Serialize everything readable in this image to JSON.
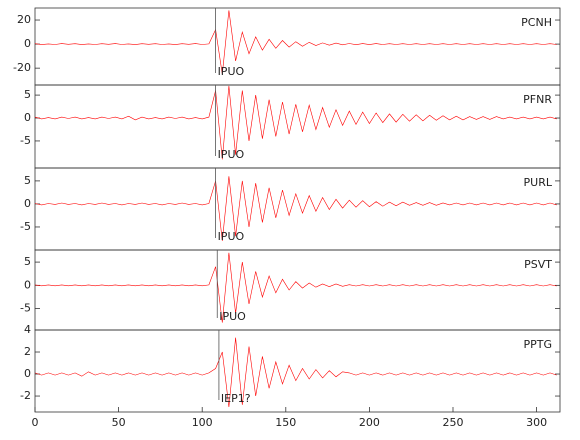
{
  "chart_data": [
    {
      "type": "line",
      "station": "PCNH",
      "pick": {
        "label": "IPUO",
        "x": 108
      },
      "color": "#ff0000",
      "x": [
        0,
        4,
        8,
        12,
        16,
        20,
        24,
        28,
        32,
        36,
        40,
        44,
        48,
        52,
        56,
        60,
        64,
        68,
        72,
        76,
        80,
        84,
        88,
        92,
        96,
        100,
        104,
        108,
        112,
        116,
        120,
        124,
        128,
        132,
        136,
        140,
        144,
        148,
        152,
        156,
        160,
        164,
        168,
        172,
        176,
        180,
        184,
        188,
        192,
        196,
        200,
        204,
        208,
        212,
        216,
        220,
        224,
        228,
        232,
        236,
        240,
        244,
        248,
        252,
        256,
        260,
        264,
        268,
        272,
        276,
        280,
        284,
        288,
        292,
        296,
        300,
        304,
        308,
        312
      ],
      "values": [
        0.3,
        -0.4,
        0.2,
        -0.3,
        0.4,
        -0.2,
        0.3,
        -0.4,
        0.2,
        -0.3,
        0.3,
        -0.2,
        0.4,
        -0.3,
        0.2,
        -0.4,
        0.3,
        -0.2,
        0.3,
        -0.3,
        0.2,
        -0.4,
        0.3,
        -0.2,
        0.4,
        -0.3,
        0.2,
        12,
        -25,
        28,
        -14,
        10,
        -8,
        6,
        -5,
        4,
        -3.5,
        3,
        -2.5,
        2,
        -1.8,
        1.5,
        -1.2,
        1,
        -0.9,
        0.8,
        -0.6,
        0.5,
        -0.5,
        0.4,
        -0.4,
        0.4,
        -0.3,
        0.3,
        -0.3,
        0.3,
        -0.3,
        0.3,
        -0.3,
        0.3,
        -0.3,
        0.3,
        -0.3,
        0.3,
        -0.3,
        0.3,
        -0.3,
        0.3,
        -0.3,
        0.3,
        -0.3,
        0.3,
        -0.3,
        0.3,
        -0.3,
        0.3,
        -0.3,
        0.3,
        -0.3
      ],
      "xlim": [
        0,
        314
      ],
      "ylim": [
        -34,
        30
      ],
      "yticks": [
        20,
        0,
        -20
      ]
    },
    {
      "type": "line",
      "station": "PFNR",
      "pick": {
        "label": "IPUO",
        "x": 108
      },
      "color": "#ff0000",
      "x": [
        0,
        4,
        8,
        12,
        16,
        20,
        24,
        28,
        32,
        36,
        40,
        44,
        48,
        52,
        56,
        60,
        64,
        68,
        72,
        76,
        80,
        84,
        88,
        92,
        96,
        100,
        104,
        108,
        112,
        116,
        120,
        124,
        128,
        132,
        136,
        140,
        144,
        148,
        152,
        156,
        160,
        164,
        168,
        172,
        176,
        180,
        184,
        188,
        192,
        196,
        200,
        204,
        208,
        212,
        216,
        220,
        224,
        228,
        232,
        236,
        240,
        244,
        248,
        252,
        256,
        260,
        264,
        268,
        272,
        276,
        280,
        284,
        288,
        292,
        296,
        300,
        304,
        308,
        312
      ],
      "values": [
        0.2,
        -0.2,
        0.1,
        -0.2,
        0.2,
        -0.1,
        0.2,
        -0.2,
        0.1,
        -0.2,
        0.2,
        -0.1,
        0.2,
        -0.2,
        0.4,
        -0.4,
        0.2,
        -0.2,
        0.1,
        -0.2,
        0.2,
        -0.1,
        0.2,
        -0.2,
        0.1,
        -0.2,
        0.2,
        6,
        -9,
        7,
        -8,
        6,
        -5,
        5,
        -4.5,
        4,
        -4,
        3.5,
        -3.5,
        3,
        -3,
        2.8,
        -2.5,
        2.3,
        -2,
        1.8,
        -1.6,
        1.5,
        -1.4,
        1.3,
        -1.2,
        1.1,
        -1,
        0.9,
        -0.9,
        0.8,
        -0.7,
        0.7,
        -0.6,
        0.6,
        -0.5,
        0.5,
        -0.4,
        0.4,
        -0.4,
        0.3,
        -0.3,
        0.3,
        -0.3,
        0.3,
        -0.2,
        0.2,
        -0.2,
        0.2,
        -0.2,
        0.2,
        -0.2,
        0.2,
        -0.2
      ],
      "xlim": [
        0,
        314
      ],
      "ylim": [
        -10.9,
        7.2
      ],
      "yticks": [
        5,
        0,
        -5
      ]
    },
    {
      "type": "line",
      "station": "PURL",
      "pick": {
        "label": "IPUO",
        "x": 108
      },
      "color": "#ff0000",
      "x": [
        0,
        4,
        8,
        12,
        16,
        20,
        24,
        28,
        32,
        36,
        40,
        44,
        48,
        52,
        56,
        60,
        64,
        68,
        72,
        76,
        80,
        84,
        88,
        92,
        96,
        100,
        104,
        108,
        112,
        116,
        120,
        124,
        128,
        132,
        136,
        140,
        144,
        148,
        152,
        156,
        160,
        164,
        168,
        172,
        176,
        180,
        184,
        188,
        192,
        196,
        200,
        204,
        208,
        212,
        216,
        220,
        224,
        228,
        232,
        236,
        240,
        244,
        248,
        252,
        256,
        260,
        264,
        268,
        272,
        276,
        280,
        284,
        288,
        292,
        296,
        300,
        304,
        308,
        312
      ],
      "values": [
        0.1,
        -0.2,
        0.1,
        -0.1,
        0.2,
        -0.1,
        0.1,
        -0.2,
        0.1,
        -0.1,
        0.2,
        -0.1,
        0.1,
        -0.2,
        0.1,
        -0.1,
        0.2,
        -0.1,
        0.1,
        -0.2,
        0.1,
        -0.1,
        0.2,
        -0.1,
        0.1,
        -0.2,
        0.1,
        5,
        -8,
        6,
        -7,
        5,
        -5,
        4.5,
        -4,
        3.5,
        -3,
        3,
        -2.5,
        2.2,
        -2,
        1.8,
        -1.6,
        1.4,
        -1.2,
        1,
        -0.9,
        0.8,
        -0.7,
        0.7,
        -0.6,
        0.5,
        -0.5,
        0.4,
        -0.4,
        0.4,
        -0.3,
        0.3,
        -0.3,
        0.3,
        -0.3,
        0.2,
        -0.2,
        0.2,
        -0.2,
        0.2,
        -0.2,
        0.2,
        -0.2,
        0.2,
        -0.2,
        0.2,
        -0.2,
        0.2,
        -0.2,
        0.2,
        -0.2,
        0.2,
        -0.2
      ],
      "xlim": [
        0,
        314
      ],
      "ylim": [
        -10,
        7.8
      ],
      "yticks": [
        5,
        0,
        -5
      ]
    },
    {
      "type": "line",
      "station": "PSVT",
      "pick": {
        "label": "IPUO",
        "x": 109
      },
      "color": "#ff0000",
      "x": [
        0,
        4,
        8,
        12,
        16,
        20,
        24,
        28,
        32,
        36,
        40,
        44,
        48,
        52,
        56,
        60,
        64,
        68,
        72,
        76,
        80,
        84,
        88,
        92,
        96,
        100,
        104,
        108,
        112,
        116,
        120,
        124,
        128,
        132,
        136,
        140,
        144,
        148,
        152,
        156,
        160,
        164,
        168,
        172,
        176,
        180,
        184,
        188,
        192,
        196,
        200,
        204,
        208,
        212,
        216,
        220,
        224,
        228,
        232,
        236,
        240,
        244,
        248,
        252,
        256,
        260,
        264,
        268,
        272,
        276,
        280,
        284,
        288,
        292,
        296,
        300,
        304,
        308,
        312
      ],
      "values": [
        0.1,
        -0.1,
        0.1,
        -0.1,
        0.1,
        -0.1,
        0.1,
        -0.1,
        0.1,
        -0.1,
        0.1,
        -0.1,
        0.1,
        -0.1,
        0.1,
        -0.1,
        0.1,
        -0.1,
        0.1,
        -0.1,
        0.1,
        -0.1,
        0.1,
        -0.1,
        0.1,
        -0.1,
        0.1,
        4,
        -8,
        7,
        -6,
        5,
        -4,
        3,
        -2.5,
        2,
        -1.6,
        1.3,
        -1,
        0.8,
        -0.6,
        0.5,
        -0.4,
        0.3,
        -0.3,
        0.3,
        -0.2,
        0.15,
        -0.15,
        0.15,
        -0.15,
        0.15,
        -0.15,
        0.15,
        -0.15,
        0.15,
        -0.15,
        0.15,
        -0.15,
        0.15,
        -0.15,
        0.15,
        -0.15,
        0.15,
        -0.15,
        0.15,
        -0.15,
        0.15,
        -0.15,
        0.15,
        -0.15,
        0.15,
        -0.15,
        0.15,
        -0.15,
        0.15,
        -0.15,
        0.15,
        -0.15
      ],
      "xlim": [
        0,
        314
      ],
      "ylim": [
        -9.6,
        7.6
      ],
      "yticks": [
        5,
        0,
        -5
      ]
    },
    {
      "type": "line",
      "station": "PPTG",
      "pick": {
        "label": "IEP1?",
        "x": 110
      },
      "color": "#ff0000",
      "x": [
        0,
        4,
        8,
        12,
        16,
        20,
        24,
        28,
        32,
        36,
        40,
        44,
        48,
        52,
        56,
        60,
        64,
        68,
        72,
        76,
        80,
        84,
        88,
        92,
        96,
        100,
        104,
        108,
        112,
        116,
        120,
        124,
        128,
        132,
        136,
        140,
        144,
        148,
        152,
        156,
        160,
        164,
        168,
        172,
        176,
        180,
        184,
        188,
        192,
        196,
        200,
        204,
        208,
        212,
        216,
        220,
        224,
        228,
        232,
        236,
        240,
        244,
        248,
        252,
        256,
        260,
        264,
        268,
        272,
        276,
        280,
        284,
        288,
        292,
        296,
        300,
        304,
        308,
        312
      ],
      "values": [
        0.1,
        -0.1,
        0.1,
        -0.1,
        0.1,
        -0.1,
        0.1,
        -0.2,
        0.2,
        -0.1,
        0.1,
        -0.1,
        0.1,
        -0.1,
        0.1,
        -0.1,
        0.1,
        -0.1,
        0.1,
        -0.1,
        0.1,
        -0.1,
        0.1,
        -0.1,
        0.1,
        -0.1,
        0.1,
        0.5,
        2,
        -3,
        3.3,
        -2.8,
        2.5,
        -2,
        1.6,
        -1.3,
        1.1,
        -0.9,
        0.8,
        -0.6,
        0.5,
        -0.45,
        0.4,
        -0.35,
        0.3,
        -0.25,
        0.2,
        0.1,
        -0.1,
        0.1,
        -0.1,
        0.1,
        -0.1,
        0.1,
        -0.1,
        0.1,
        -0.1,
        0.1,
        -0.1,
        0.1,
        -0.1,
        0.1,
        -0.1,
        0.1,
        -0.1,
        0.1,
        -0.1,
        0.1,
        -0.1,
        0.1,
        -0.1,
        0.1,
        -0.1,
        0.1,
        -0.1,
        0.1,
        -0.1,
        0.1,
        -0.1
      ],
      "xlim": [
        0,
        314
      ],
      "ylim": [
        -3.45,
        4
      ],
      "yticks": [
        4,
        2,
        0,
        -2
      ],
      "xticks": [
        0,
        50,
        100,
        150,
        200,
        250,
        300
      ]
    }
  ]
}
